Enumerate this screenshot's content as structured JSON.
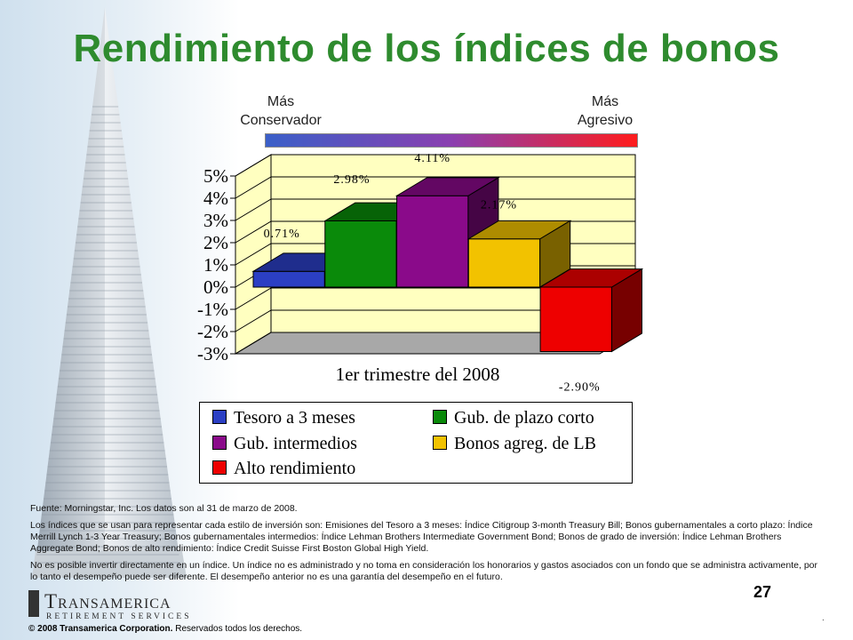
{
  "slide": {
    "title": "Rendimiento de los índices de bonos",
    "page_number": "27"
  },
  "risk_scale": {
    "left_label_line1": "Más",
    "left_label_line2": "Conservador",
    "right_label_line1": "Más",
    "right_label_line2": "Agresivo",
    "gradient_colors": [
      "#3a5fc8",
      "#8a3fb0",
      "#ff1c1c"
    ]
  },
  "chart_data": {
    "type": "bar",
    "title": "",
    "xlabel": "1er trimestre del 2008",
    "ylabel": "",
    "categories": [
      "1er trimestre del 2008"
    ],
    "ylim": [
      -3,
      5
    ],
    "yticks": [
      "5%",
      "4%",
      "3%",
      "2%",
      "1%",
      "0%",
      "-1%",
      "-2%",
      "-3%"
    ],
    "grid": true,
    "legend_position": "bottom",
    "series": [
      {
        "name": "Tesoro a 3 meses",
        "values": [
          0.71
        ],
        "label": "0.71%",
        "color": "#2b3fc4"
      },
      {
        "name": "Gub. de plazo corto",
        "values": [
          2.98
        ],
        "label": "2.98%",
        "color": "#0a8a0a"
      },
      {
        "name": "Gub. intermedios",
        "values": [
          4.11
        ],
        "label": "4.11%",
        "color": "#8a0a8a"
      },
      {
        "name": "Bonos agreg. de LB",
        "values": [
          2.17
        ],
        "label": "2.17%",
        "color": "#f2c200"
      },
      {
        "name": "Alto rendimiento",
        "values": [
          -2.9
        ],
        "label": "-2.90%",
        "color": "#ee0000"
      }
    ]
  },
  "notes": {
    "source": "Fuente: Morningstar, Inc. Los datos son al 31 de marzo de 2008.",
    "indices": "Los índices que se usan para representar cada estilo de inversión son: Emisiones del Tesoro a 3 meses: Índice Citigroup 3-month Treasury Bill; Bonos gubernamentales a corto plazo: Índice Merrill Lynch 1-3 Year Treasury; Bonos gubernamentales intermedios: Índice Lehman Brothers Intermediate Government Bond; Bonos de grado de inversión: Índice Lehman Brothers Aggregate Bond; Bonos de alto rendimiento: Índice Credit Suisse First Boston Global High Yield.",
    "disclaimer": "No es posible invertir directamente en un índice. Un índice no es administrado y no toma en consideración los honorarios y gastos asociados con un fondo que se administra activamente, por lo tanto el desempeño puede ser diferente. El desempeño anterior no es una garantía del desempeño en el futuro."
  },
  "footer": {
    "logo_name": "Transamerica",
    "logo_sub": "RETIREMENT SERVICES",
    "copyright": "© 2008 Transamerica Corporation.",
    "rights": "Reservados todos los derechos."
  }
}
